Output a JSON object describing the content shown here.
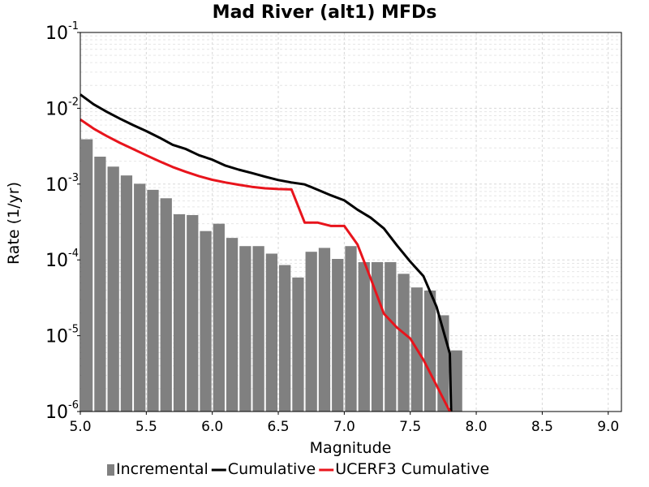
{
  "chart_data": {
    "type": "bar",
    "title": "Mad River (alt1) MFDs",
    "xlabel": "Magnitude",
    "ylabel": "Rate (1/yr)",
    "xlim": [
      5.0,
      9.1
    ],
    "ylim": [
      1e-06,
      0.1
    ],
    "yscale": "log",
    "grid": true,
    "legend_position": "bottom",
    "xticks": [
      "5.0",
      "5.5",
      "6.0",
      "6.5",
      "7.0",
      "7.5",
      "8.0",
      "8.5",
      "9.0"
    ],
    "yticks": [
      {
        "base": "10",
        "exp": "-6",
        "value": 1e-06
      },
      {
        "base": "10",
        "exp": "-5",
        "value": 1e-05
      },
      {
        "base": "10",
        "exp": "-4",
        "value": 0.0001
      },
      {
        "base": "10",
        "exp": "-3",
        "value": 0.001
      },
      {
        "base": "10",
        "exp": "-2",
        "value": 0.01
      },
      {
        "base": "10",
        "exp": "-1",
        "value": 0.1
      }
    ],
    "series": [
      {
        "name": "Incremental",
        "type": "bar",
        "color": "#808080",
        "bin_width": 0.1,
        "x": [
          5.05,
          5.15,
          5.25,
          5.35,
          5.45,
          5.55,
          5.65,
          5.75,
          5.85,
          5.95,
          6.05,
          6.15,
          6.25,
          6.35,
          6.45,
          6.55,
          6.65,
          6.75,
          6.85,
          6.95,
          7.05,
          7.15,
          7.25,
          7.35,
          7.45,
          7.55,
          7.65,
          7.75,
          7.85
        ],
        "values": [
          0.0039,
          0.0023,
          0.0017,
          0.0013,
          0.00101,
          0.00084,
          0.00065,
          0.0004,
          0.00039,
          0.00024,
          0.0003,
          0.000195,
          0.000152,
          0.000152,
          0.000121,
          8.55e-05,
          5.86e-05,
          0.000128,
          0.000144,
          0.000103,
          0.000152,
          9.35e-05,
          9.35e-05,
          9.35e-05,
          6.55e-05,
          4.33e-05,
          3.94e-05,
          1.86e-05,
          6.4e-06
        ]
      },
      {
        "name": "Cumulative",
        "type": "line",
        "color": "#000000",
        "x": [
          5.0,
          5.1,
          5.2,
          5.3,
          5.4,
          5.5,
          5.6,
          5.7,
          5.8,
          5.9,
          6.0,
          6.1,
          6.2,
          6.3,
          6.4,
          6.5,
          6.6,
          6.7,
          6.8,
          6.9,
          7.0,
          7.1,
          7.2,
          7.3,
          7.4,
          7.5,
          7.6,
          7.7,
          7.8,
          7.81
        ],
        "values": [
          0.0152,
          0.0113,
          0.009,
          0.0073,
          0.006,
          0.005,
          0.0041,
          0.0033,
          0.0029,
          0.0024,
          0.0021,
          0.00175,
          0.00155,
          0.0014,
          0.00125,
          0.00113,
          0.00105,
          0.00099,
          0.00084,
          0.00071,
          0.00061,
          0.00046,
          0.00036,
          0.00026,
          0.000155,
          9.5e-05,
          6.1e-05,
          2.4e-05,
          5.8e-06,
          1e-06
        ]
      },
      {
        "name": "UCERF3 Cumulative",
        "type": "line",
        "color": "#e8141c",
        "x": [
          5.0,
          5.1,
          5.2,
          5.3,
          5.4,
          5.5,
          5.6,
          5.7,
          5.8,
          5.9,
          6.0,
          6.1,
          6.2,
          6.3,
          6.4,
          6.5,
          6.6,
          6.7,
          6.8,
          6.9,
          7.0,
          7.1,
          7.2,
          7.3,
          7.4,
          7.5,
          7.6,
          7.7,
          7.8
        ],
        "values": [
          0.0071,
          0.0054,
          0.0043,
          0.0035,
          0.0029,
          0.0024,
          0.002,
          0.00168,
          0.00145,
          0.00127,
          0.00114,
          0.00105,
          0.00098,
          0.00092,
          0.00088,
          0.00086,
          0.00085,
          0.00031,
          0.00031,
          0.00028,
          0.00028,
          0.00016,
          5.7e-05,
          1.95e-05,
          1.28e-05,
          9.2e-06,
          4.8e-06,
          2.2e-06,
          1e-06
        ]
      }
    ]
  }
}
